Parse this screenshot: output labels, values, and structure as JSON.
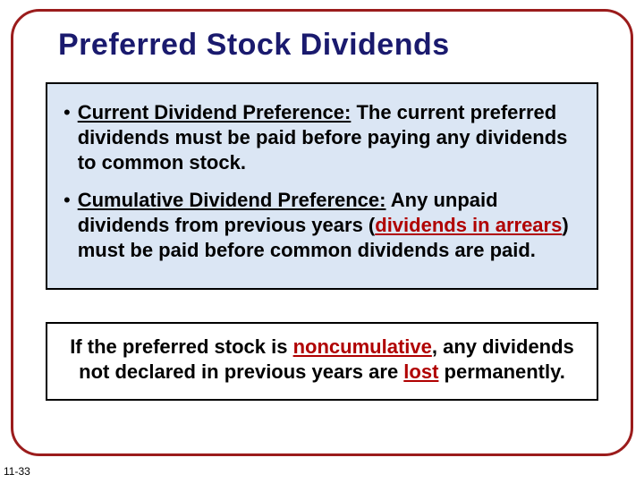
{
  "slide": {
    "title": "Preferred Stock Dividends",
    "border_color": "#9b1c1c",
    "border_radius": 32,
    "title_color": "#1a1a6e",
    "title_fontsize": 34
  },
  "box1": {
    "background": "#dbe6f4",
    "border_color": "#000000",
    "bullets": [
      {
        "lead": "Current Dividend Preference:",
        "rest": "  The current preferred dividends must be paid before paying any dividends to common stock."
      },
      {
        "lead": "Cumulative Dividend Preference:",
        "rest_pre": "  Any unpaid dividends from previous years (",
        "highlight": "dividends in arrears",
        "rest_post": ") must be paid before common dividends are paid."
      }
    ]
  },
  "box2": {
    "background": "#ffffff",
    "border_color": "#000000",
    "text_pre": "If the preferred stock is ",
    "word1": "noncumulative",
    "text_mid": ", any dividends not declared in previous years are ",
    "word2": "lost",
    "text_post": " permanently."
  },
  "pagenum": "11-33",
  "body_fontsize": 22,
  "highlight_color": "#b00000"
}
